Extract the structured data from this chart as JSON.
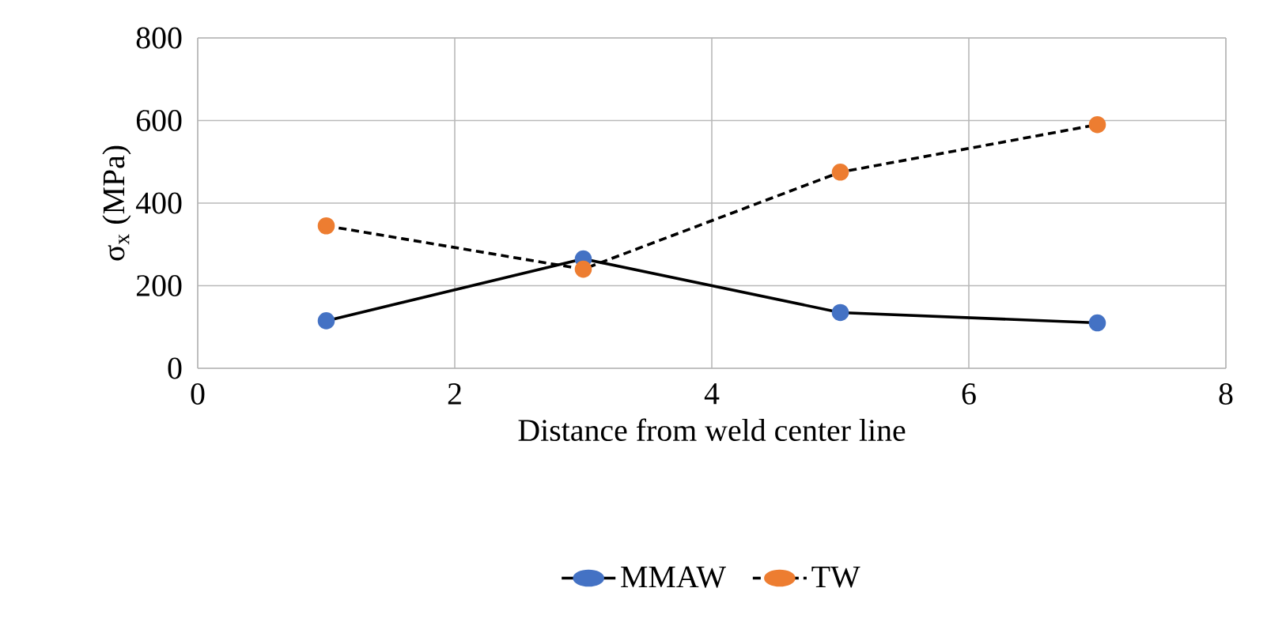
{
  "chart_data": {
    "type": "line",
    "xlabel": "Distance from weld center line",
    "ylabel": "σ$_{x}$ (MPa)",
    "xlim": [
      0,
      8
    ],
    "xticks": [
      0,
      2,
      4,
      6,
      8
    ],
    "ylim": [
      0,
      800
    ],
    "yticks": [
      0,
      200,
      400,
      600,
      800
    ],
    "grid": true,
    "legend": "bottom",
    "marker": "circle",
    "series": [
      {
        "name": "MMAW",
        "color": "#4472c4",
        "line_style": "solid",
        "x": [
          1,
          3,
          5,
          7
        ],
        "values": [
          115,
          265,
          135,
          110
        ]
      },
      {
        "name": "TW",
        "color": "#ed7d31",
        "line_style": "dashed",
        "x": [
          1,
          3,
          5,
          7
        ],
        "values": [
          345,
          240,
          475,
          590
        ]
      }
    ]
  }
}
